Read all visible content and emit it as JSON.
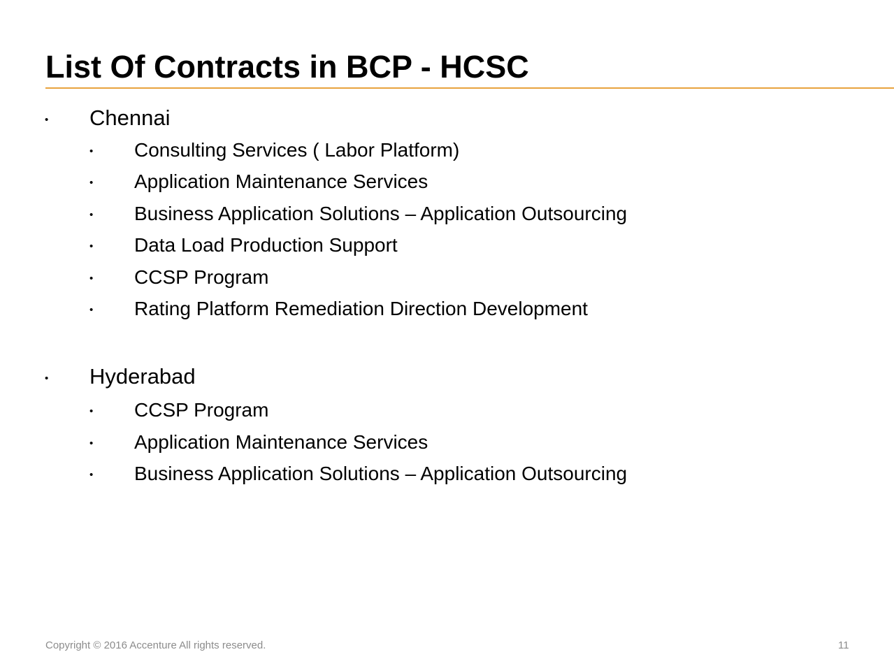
{
  "slide": {
    "title": "List Of Contracts in BCP - HCSC",
    "accent_color": "#E8A33D"
  },
  "locations": [
    {
      "name": "Chennai",
      "contracts": [
        "Consulting Services ( Labor Platform)",
        "Application Maintenance Services",
        "Business Application Solutions – Application Outsourcing",
        "Data Load Production Support",
        "CCSP Program",
        "Rating Platform Remediation Direction Development"
      ]
    },
    {
      "name": "Hyderabad",
      "contracts": [
        "CCSP Program",
        "Application Maintenance Services",
        "Business Application Solutions – Application Outsourcing"
      ]
    }
  ],
  "bullet_glyph": "•",
  "footer": {
    "copyright": "Copyright © 2016 Accenture  All rights reserved.",
    "page_number": "11"
  }
}
